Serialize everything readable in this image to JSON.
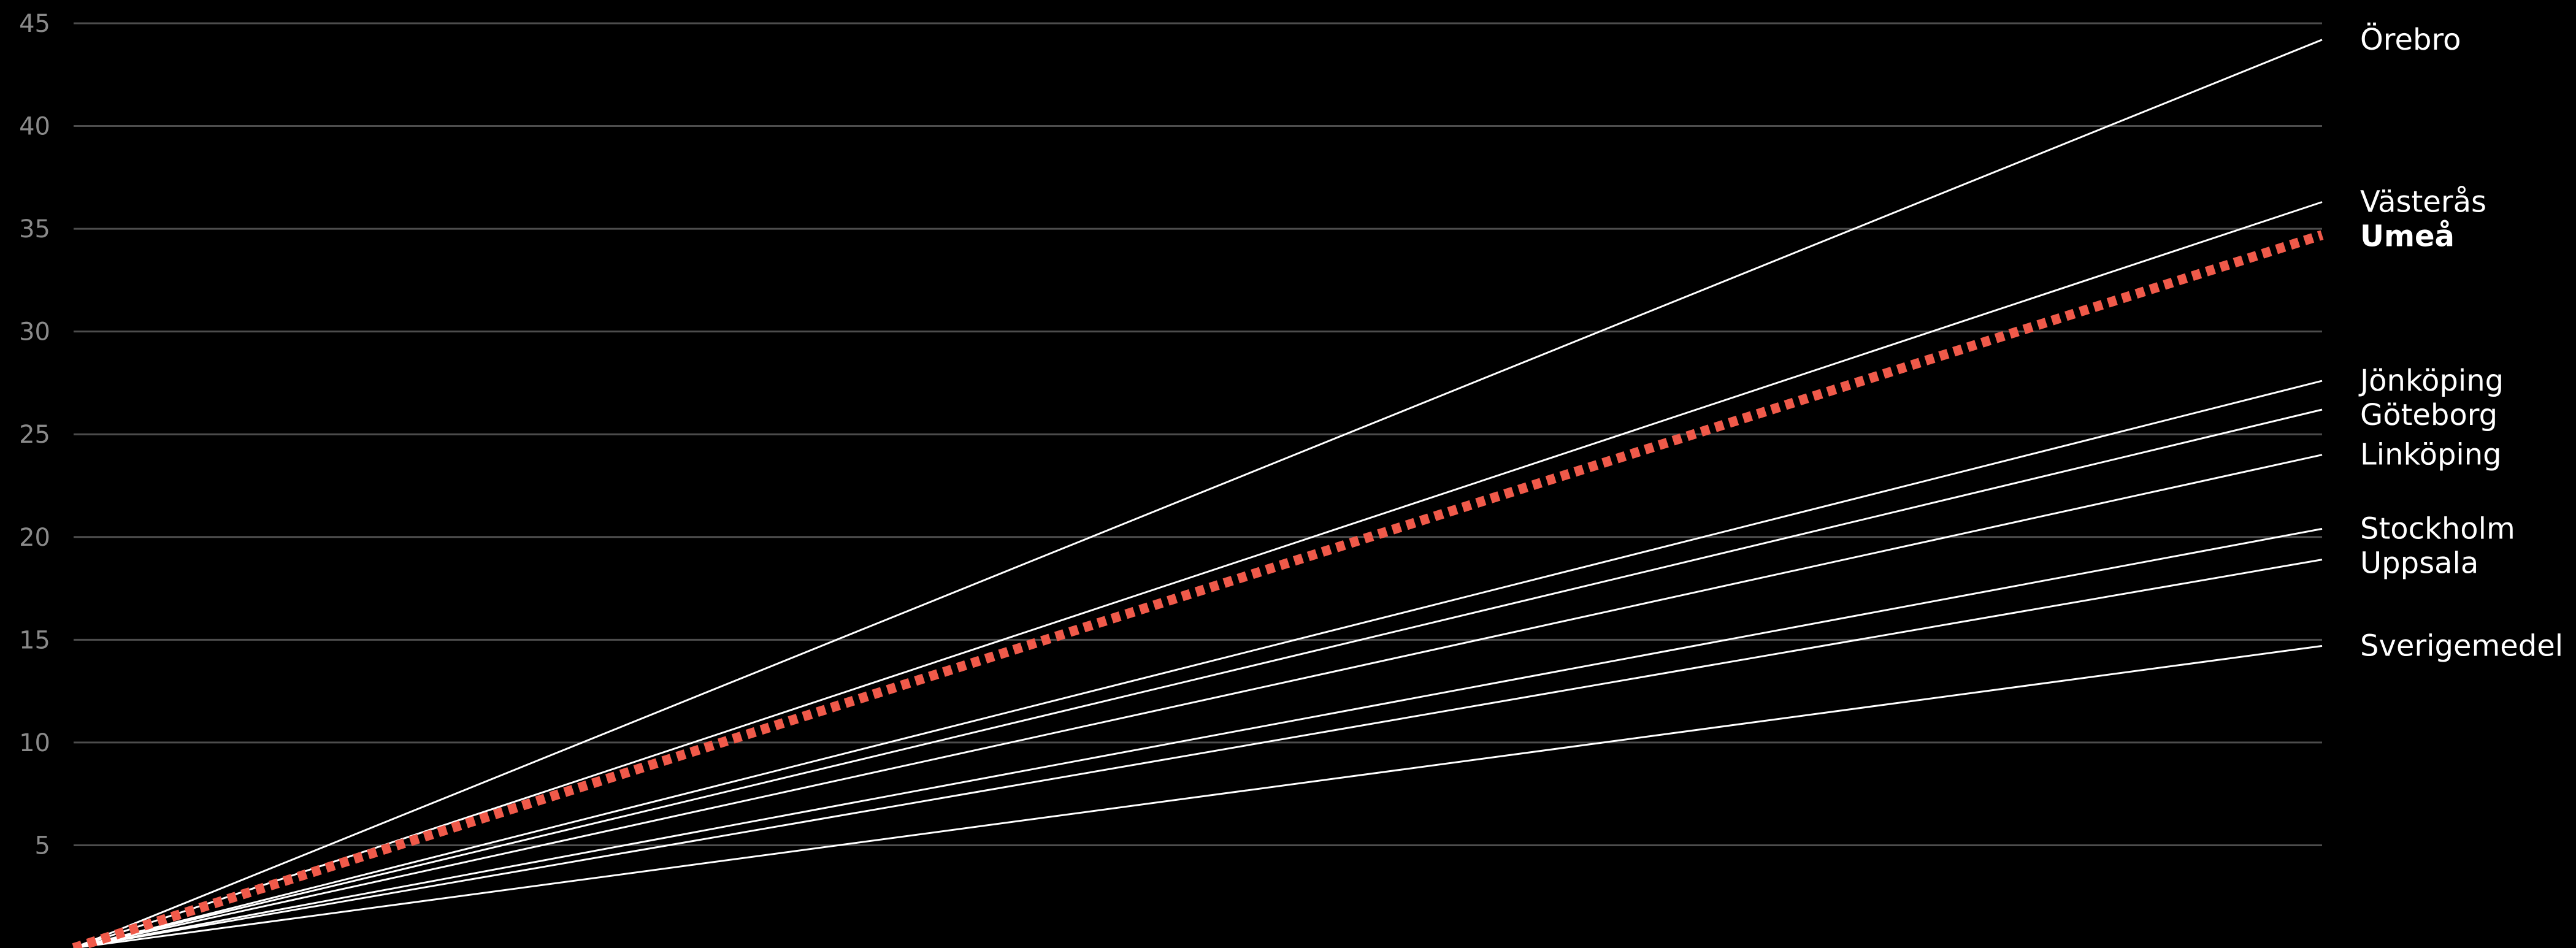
{
  "chart_data": {
    "type": "line",
    "ylim": [
      0,
      45
    ],
    "y_ticks": [
      5,
      10,
      15,
      20,
      25,
      30,
      35,
      40,
      45
    ],
    "grid": true,
    "legend": "direct labels at line ends (right)",
    "colors": {
      "background": "#000000",
      "grid": "#4d4d4d",
      "tick_label": "#8a8a8a",
      "line": "#ffffff",
      "highlight": "#f05a4a"
    },
    "x": [
      0,
      1
    ],
    "series": [
      {
        "name": "Örebro",
        "values": [
          0,
          44.2
        ],
        "highlight": false
      },
      {
        "name": "Västerås",
        "values": [
          0,
          36.3
        ],
        "highlight": false
      },
      {
        "name": "Umeå",
        "values": [
          0,
          34.7
        ],
        "highlight": true
      },
      {
        "name": "Jönköping",
        "values": [
          0,
          27.6
        ],
        "highlight": false
      },
      {
        "name": "Göteborg",
        "values": [
          0,
          26.2
        ],
        "highlight": false
      },
      {
        "name": "Linköping",
        "values": [
          0,
          24.0
        ],
        "highlight": false
      },
      {
        "name": "Stockholm",
        "values": [
          0,
          20.4
        ],
        "highlight": false
      },
      {
        "name": "Uppsala",
        "values": [
          0,
          18.9
        ],
        "highlight": false
      },
      {
        "name": "Sverigemedel",
        "values": [
          0,
          14.7
        ],
        "highlight": false
      }
    ]
  }
}
